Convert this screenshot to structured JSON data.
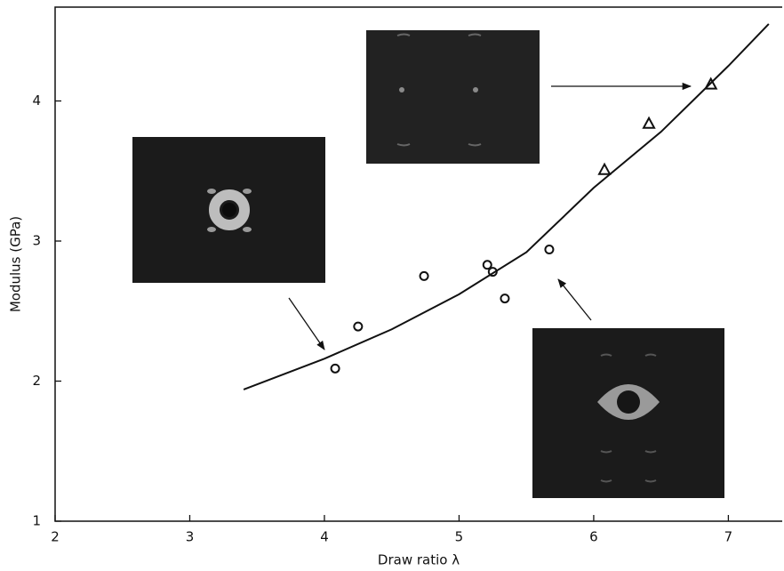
{
  "chart_data": {
    "type": "scatter",
    "x_label": "Draw ratio λ",
    "y_label": "Modulus (GPa)",
    "xlim": [
      2,
      7.4
    ],
    "ylim": [
      1,
      4.67
    ],
    "xticks": [
      2,
      3,
      4,
      5,
      6,
      7
    ],
    "yticks": [
      1,
      2,
      3,
      4
    ],
    "series": [
      {
        "marker": "circle",
        "color": "#111111",
        "x": [
          4.08,
          4.25,
          4.74,
          5.21,
          5.25,
          5.34,
          5.67
        ],
        "values": [
          2.09,
          2.39,
          2.75,
          2.83,
          2.78,
          2.59,
          2.94
        ]
      },
      {
        "marker": "triangle",
        "color": "#111111",
        "x": [
          6.08,
          6.41,
          6.87
        ],
        "values": [
          3.51,
          3.84,
          4.12
        ]
      },
      {
        "marker": "line",
        "color": "#111111",
        "x": [
          3.4,
          4,
          4.5,
          5,
          5.5,
          6,
          6.5,
          7,
          7.3
        ],
        "values": [
          1.94,
          2.16,
          2.37,
          2.62,
          2.92,
          3.38,
          3.78,
          4.25,
          4.55
        ]
      }
    ]
  }
}
